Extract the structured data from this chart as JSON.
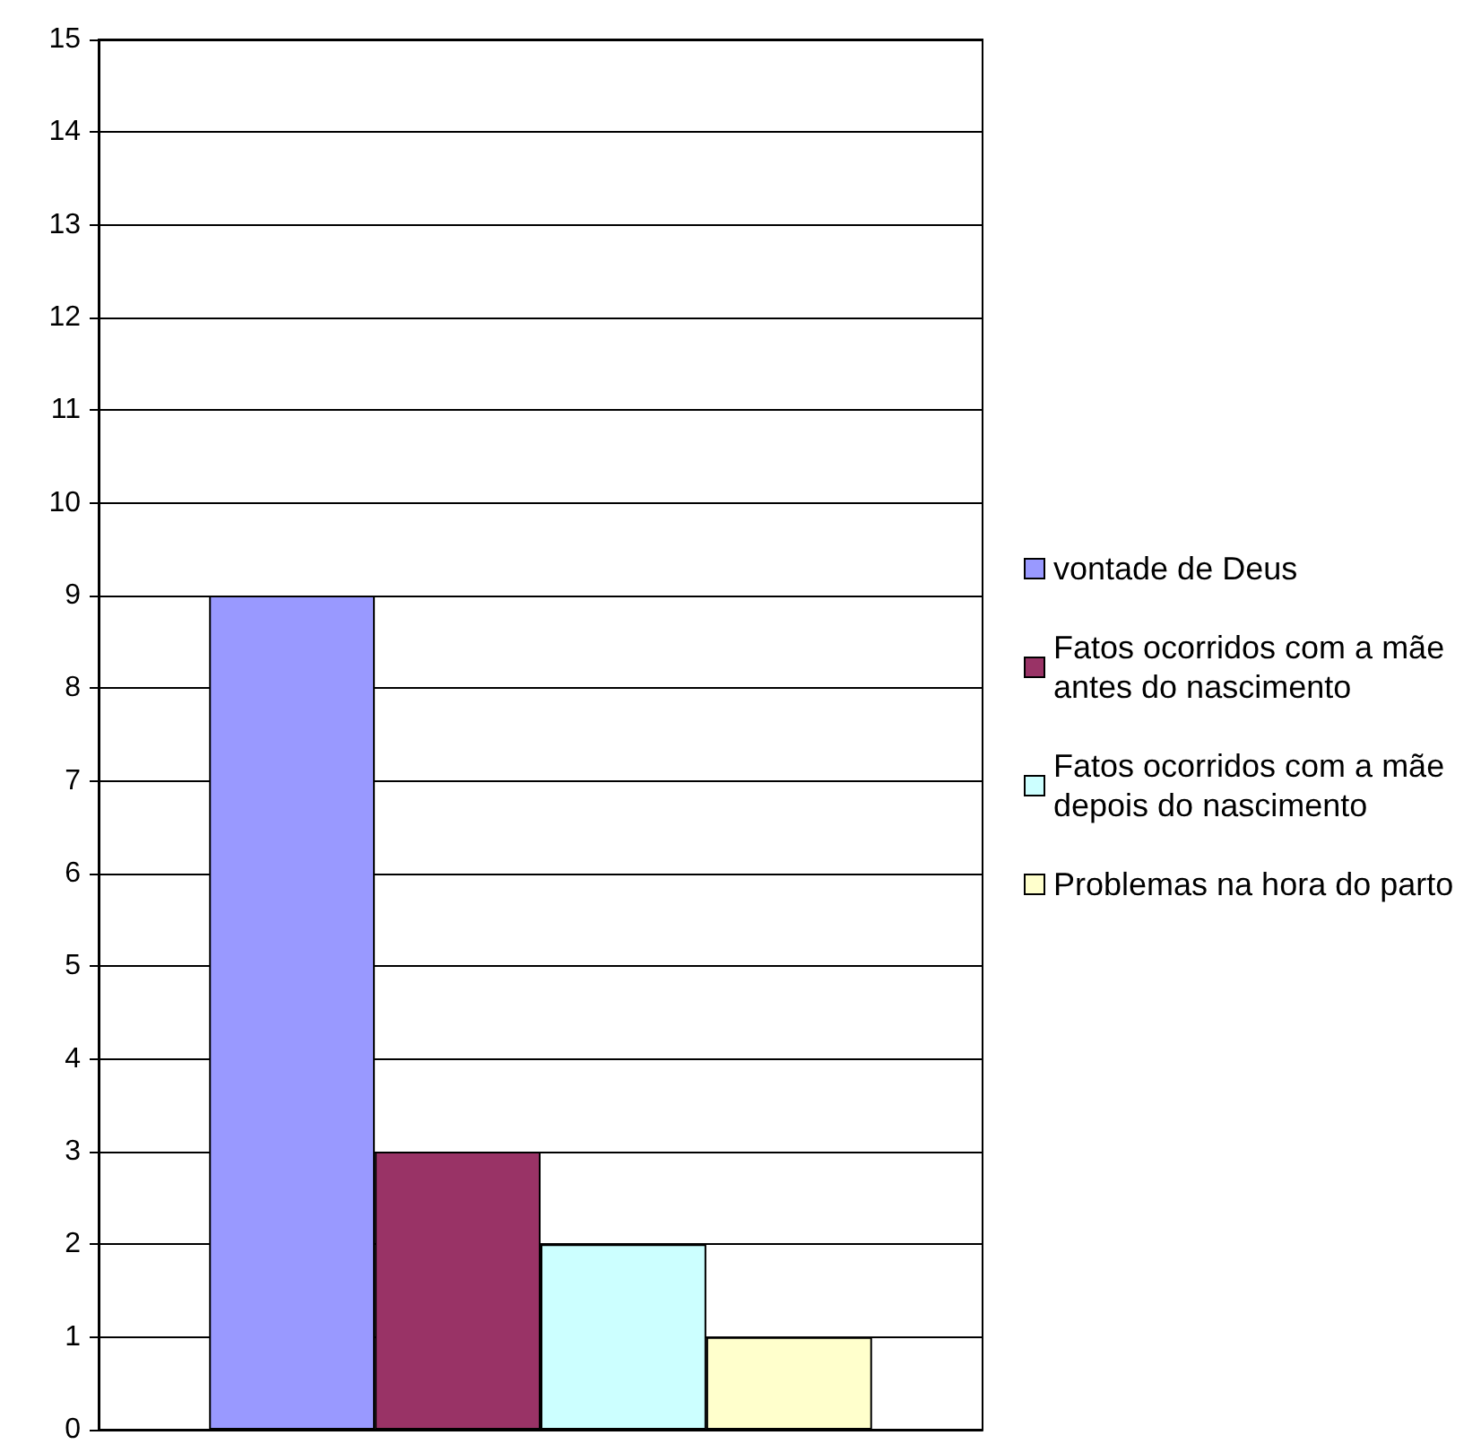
{
  "chart_data": {
    "type": "bar",
    "categories": [
      null
    ],
    "series": [
      {
        "name": "vontade de Deus",
        "color": "#9999ff",
        "values": [
          9
        ]
      },
      {
        "name": "Fatos ocorridos com a mãe antes do nascimento",
        "color": "#993366",
        "values": [
          3
        ]
      },
      {
        "name": "Fatos ocorridos com a mãe depois do nascimento",
        "color": "#ccffff",
        "values": [
          2
        ]
      },
      {
        "name": "Problemas na hora do parto",
        "color": "#ffffcc",
        "values": [
          1
        ]
      }
    ],
    "ylim": [
      0,
      15
    ],
    "yticks": [
      0,
      1,
      2,
      3,
      4,
      5,
      6,
      7,
      8,
      9,
      10,
      11,
      12,
      13,
      14,
      15
    ],
    "grid": true,
    "legend": "right"
  }
}
